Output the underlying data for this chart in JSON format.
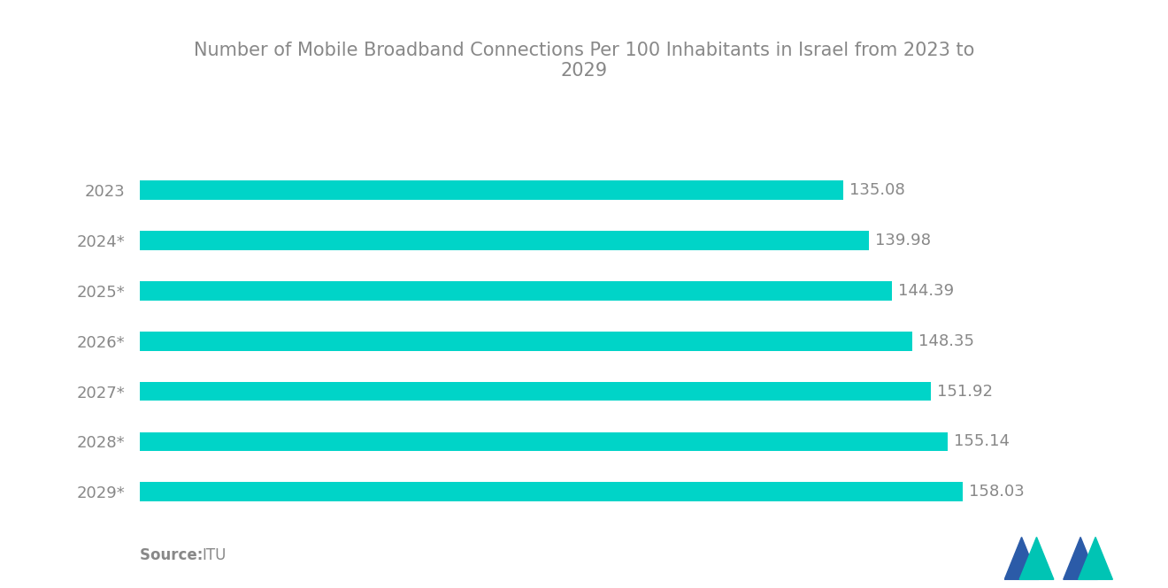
{
  "title": "Number of Mobile Broadband Connections Per 100 Inhabitants in Israel from 2023 to\n2029",
  "categories": [
    "2023",
    "2024*",
    "2025*",
    "2026*",
    "2027*",
    "2028*",
    "2029*"
  ],
  "values": [
    135.08,
    139.98,
    144.39,
    148.35,
    151.92,
    155.14,
    158.03
  ],
  "bar_color": "#00D4C8",
  "background_color": "#ffffff",
  "title_color": "#888888",
  "label_color": "#888888",
  "value_color": "#888888",
  "xlim": [
    0,
    175
  ],
  "title_fontsize": 15,
  "label_fontsize": 13,
  "value_fontsize": 13,
  "source_fontsize": 12,
  "bar_height": 0.38
}
